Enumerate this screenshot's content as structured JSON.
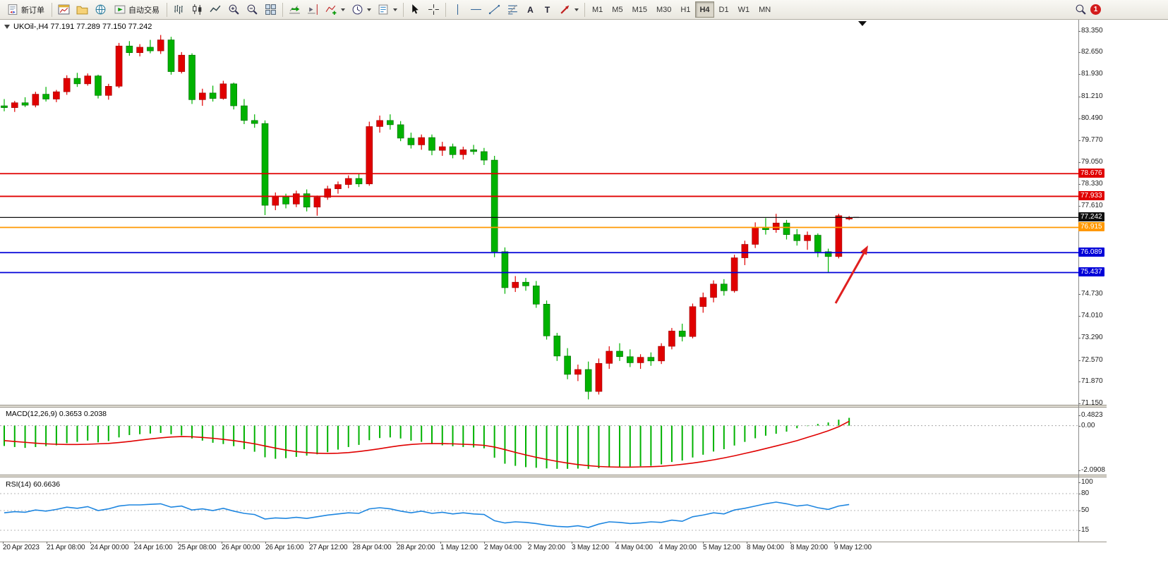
{
  "toolbar": {
    "new_order_label": "新订单",
    "autotrading_label": "自动交易",
    "text_tool_label": "A",
    "label_tool_label": "T",
    "timeframes": [
      "M1",
      "M5",
      "M15",
      "M30",
      "H1",
      "H4",
      "D1",
      "W1",
      "MN"
    ],
    "active_timeframe": "H4",
    "notification_count": "1"
  },
  "chart": {
    "title": "UKOil-,H4 77.191 77.289 77.150 77.242"
  },
  "chart_data": {
    "type": "candlestick",
    "symbol": "UKOil-",
    "timeframe": "H4",
    "up_color": "#E00000",
    "down_color": "#00B200",
    "annotation_arrow_color": "#E02020",
    "price_axis": {
      "range": [
        71.15,
        83.35
      ],
      "labels": [
        "83.350",
        "82.650",
        "81.930",
        "81.210",
        "80.490",
        "79.770",
        "79.050",
        "78.330",
        "77.610",
        "74.730",
        "74.010",
        "73.290",
        "72.570",
        "71.870",
        "71.150"
      ]
    },
    "levels": [
      {
        "value": 78.676,
        "label": "78.676",
        "color": "#E00000"
      },
      {
        "value": 77.933,
        "label": "77.933",
        "color": "#E00000"
      },
      {
        "value": 77.242,
        "label": "77.242",
        "color": "#101010"
      },
      {
        "value": 76.915,
        "label": "76.915",
        "color": "#FF9800"
      },
      {
        "value": 76.089,
        "label": "76.089",
        "color": "#0000D8"
      },
      {
        "value": 75.437,
        "label": "75.437",
        "color": "#0000D8"
      }
    ],
    "x_labels": [
      "20 Apr 2023",
      "21 Apr 08:00",
      "24 Apr 00:00",
      "24 Apr 16:00",
      "25 Apr 08:00",
      "26 Apr 00:00",
      "26 Apr 16:00",
      "27 Apr 12:00",
      "28 Apr 04:00",
      "28 Apr 20:00",
      "1 May 12:00",
      "2 May 04:00",
      "2 May 20:00",
      "3 May 12:00",
      "4 May 04:00",
      "4 May 20:00",
      "5 May 12:00",
      "8 May 04:00",
      "8 May 20:00",
      "9 May 12:00"
    ],
    "candles": [
      [
        80.9,
        81.12,
        80.72,
        80.84
      ],
      [
        80.84,
        81.06,
        80.7,
        81.0
      ],
      [
        81.0,
        81.18,
        80.86,
        80.92
      ],
      [
        80.92,
        81.36,
        80.85,
        81.28
      ],
      [
        81.28,
        81.52,
        81.04,
        81.12
      ],
      [
        81.12,
        81.42,
        81.02,
        81.36
      ],
      [
        81.36,
        81.9,
        81.26,
        81.8
      ],
      [
        81.8,
        81.98,
        81.52,
        81.62
      ],
      [
        81.62,
        81.96,
        81.56,
        81.88
      ],
      [
        81.88,
        81.92,
        81.14,
        81.24
      ],
      [
        81.24,
        81.62,
        81.1,
        81.54
      ],
      [
        81.54,
        82.96,
        81.48,
        82.86
      ],
      [
        82.86,
        83.02,
        82.54,
        82.64
      ],
      [
        82.64,
        82.92,
        82.52,
        82.82
      ],
      [
        82.82,
        83.06,
        82.62,
        82.7
      ],
      [
        82.7,
        83.22,
        82.6,
        83.06
      ],
      [
        83.06,
        83.16,
        81.92,
        82.02
      ],
      [
        82.02,
        82.66,
        81.96,
        82.56
      ],
      [
        82.56,
        82.62,
        80.96,
        81.1
      ],
      [
        81.1,
        81.46,
        80.9,
        81.32
      ],
      [
        81.32,
        81.56,
        81.04,
        81.14
      ],
      [
        81.14,
        81.72,
        81.1,
        81.62
      ],
      [
        81.62,
        81.66,
        80.78,
        80.9
      ],
      [
        80.9,
        81.12,
        80.3,
        80.42
      ],
      [
        80.42,
        80.62,
        80.18,
        80.32
      ],
      [
        80.32,
        80.42,
        77.32,
        77.64
      ],
      [
        77.64,
        78.06,
        77.48,
        77.92
      ],
      [
        77.92,
        78.02,
        77.54,
        77.68
      ],
      [
        77.68,
        78.12,
        77.58,
        78.02
      ],
      [
        78.02,
        78.16,
        77.44,
        77.58
      ],
      [
        77.58,
        77.96,
        77.3,
        77.9
      ],
      [
        77.9,
        78.28,
        77.82,
        78.18
      ],
      [
        78.18,
        78.42,
        78.02,
        78.32
      ],
      [
        78.32,
        78.62,
        78.2,
        78.52
      ],
      [
        78.52,
        78.66,
        78.24,
        78.34
      ],
      [
        78.34,
        80.38,
        78.28,
        80.22
      ],
      [
        80.22,
        80.58,
        80.02,
        80.42
      ],
      [
        80.42,
        80.62,
        80.12,
        80.28
      ],
      [
        80.28,
        80.4,
        79.74,
        79.84
      ],
      [
        79.84,
        80.02,
        79.5,
        79.62
      ],
      [
        79.62,
        79.96,
        79.46,
        79.86
      ],
      [
        79.86,
        79.96,
        79.28,
        79.44
      ],
      [
        79.44,
        79.72,
        79.26,
        79.56
      ],
      [
        79.56,
        79.66,
        79.18,
        79.3
      ],
      [
        79.3,
        79.56,
        79.14,
        79.46
      ],
      [
        79.46,
        79.62,
        79.3,
        79.4
      ],
      [
        79.4,
        79.52,
        78.96,
        79.12
      ],
      [
        79.12,
        79.26,
        75.94,
        76.12
      ],
      [
        76.12,
        76.26,
        74.74,
        74.94
      ],
      [
        74.94,
        75.32,
        74.8,
        75.12
      ],
      [
        75.12,
        75.26,
        74.84,
        75.0
      ],
      [
        75.0,
        75.16,
        74.28,
        74.4
      ],
      [
        74.4,
        74.52,
        73.24,
        73.36
      ],
      [
        73.36,
        73.46,
        72.54,
        72.7
      ],
      [
        72.7,
        72.96,
        71.94,
        72.1
      ],
      [
        72.1,
        72.42,
        71.88,
        72.26
      ],
      [
        72.26,
        72.52,
        71.28,
        71.54
      ],
      [
        71.54,
        72.62,
        71.44,
        72.46
      ],
      [
        72.46,
        73.02,
        72.28,
        72.86
      ],
      [
        72.86,
        73.12,
        72.54,
        72.68
      ],
      [
        72.68,
        72.92,
        72.34,
        72.48
      ],
      [
        72.48,
        72.76,
        72.28,
        72.66
      ],
      [
        72.66,
        72.82,
        72.38,
        72.54
      ],
      [
        72.54,
        73.12,
        72.44,
        73.02
      ],
      [
        73.02,
        73.62,
        72.92,
        73.52
      ],
      [
        73.52,
        73.76,
        73.18,
        73.34
      ],
      [
        73.34,
        74.42,
        73.28,
        74.32
      ],
      [
        74.32,
        74.78,
        74.12,
        74.62
      ],
      [
        74.62,
        75.18,
        74.46,
        75.06
      ],
      [
        75.06,
        75.22,
        74.68,
        74.84
      ],
      [
        74.84,
        76.02,
        74.78,
        75.92
      ],
      [
        75.92,
        76.48,
        75.68,
        76.36
      ],
      [
        76.36,
        77.08,
        76.24,
        76.92
      ],
      [
        76.92,
        77.22,
        76.68,
        76.84
      ],
      [
        76.84,
        77.36,
        76.74,
        77.06
      ],
      [
        77.06,
        77.16,
        76.52,
        76.68
      ],
      [
        76.68,
        76.86,
        76.32,
        76.48
      ],
      [
        76.48,
        76.78,
        76.18,
        76.66
      ],
      [
        76.66,
        76.72,
        75.94,
        76.12
      ],
      [
        76.12,
        76.22,
        75.44,
        75.96
      ],
      [
        75.96,
        77.36,
        75.9,
        77.3
      ],
      [
        77.191,
        77.289,
        77.15,
        77.242
      ]
    ],
    "macd": {
      "label": "MACD(12,26,9) 0.3653 0.2038",
      "params": "12,26,9",
      "current_macd": 0.3653,
      "current_signal": 0.2038,
      "range": [
        -2.0908,
        0.4823
      ],
      "axis_labels": [
        "0.4823",
        "0.00",
        "-2.0908"
      ],
      "histogram_color": "#00B200",
      "signal_color": "#E00000",
      "histogram": [
        -0.95,
        -1.0,
        -1.04,
        -1.0,
        -0.96,
        -0.92,
        -0.82,
        -0.76,
        -0.7,
        -0.78,
        -0.72,
        -0.55,
        -0.44,
        -0.4,
        -0.37,
        -0.34,
        -0.4,
        -0.46,
        -0.6,
        -0.7,
        -0.8,
        -0.86,
        -0.96,
        -1.1,
        -1.22,
        -1.48,
        -1.55,
        -1.52,
        -1.46,
        -1.4,
        -1.34,
        -1.24,
        -1.12,
        -1.0,
        -0.9,
        -0.68,
        -0.58,
        -0.55,
        -0.6,
        -0.7,
        -0.76,
        -0.86,
        -0.92,
        -0.96,
        -1.0,
        -1.02,
        -1.06,
        -1.5,
        -1.78,
        -1.88,
        -1.94,
        -1.97,
        -2.0,
        -2.02,
        -2.02,
        -2.01,
        -2.02,
        -1.99,
        -1.95,
        -1.93,
        -1.91,
        -1.9,
        -1.88,
        -1.81,
        -1.7,
        -1.63,
        -1.49,
        -1.36,
        -1.21,
        -1.1,
        -0.93,
        -0.76,
        -0.59,
        -0.47,
        -0.38,
        -0.28,
        -0.12,
        -0.02,
        0.08,
        0.15,
        0.28,
        0.3653
      ],
      "signal": [
        -0.7,
        -0.74,
        -0.78,
        -0.82,
        -0.85,
        -0.87,
        -0.88,
        -0.88,
        -0.87,
        -0.85,
        -0.83,
        -0.79,
        -0.74,
        -0.68,
        -0.62,
        -0.57,
        -0.53,
        -0.51,
        -0.52,
        -0.55,
        -0.59,
        -0.64,
        -0.7,
        -0.77,
        -0.85,
        -0.95,
        -1.05,
        -1.14,
        -1.21,
        -1.26,
        -1.29,
        -1.3,
        -1.29,
        -1.26,
        -1.21,
        -1.15,
        -1.08,
        -1.0,
        -0.93,
        -0.88,
        -0.85,
        -0.84,
        -0.84,
        -0.85,
        -0.87,
        -0.89,
        -0.92,
        -1.0,
        -1.12,
        -1.25,
        -1.37,
        -1.48,
        -1.58,
        -1.67,
        -1.75,
        -1.82,
        -1.87,
        -1.91,
        -1.93,
        -1.94,
        -1.94,
        -1.93,
        -1.92,
        -1.9,
        -1.86,
        -1.81,
        -1.75,
        -1.68,
        -1.6,
        -1.51,
        -1.41,
        -1.3,
        -1.19,
        -1.07,
        -0.95,
        -0.83,
        -0.7,
        -0.55,
        -0.4,
        -0.24,
        -0.05,
        0.2038
      ]
    },
    "rsi": {
      "label": "RSI(14) 60.6636",
      "period": 14,
      "current": 60.6636,
      "range": [
        0,
        100
      ],
      "axis_labels": [
        "100",
        "80",
        "50",
        "15"
      ],
      "levels": [
        80,
        50,
        15
      ],
      "color": "#1E86E0",
      "values": [
        46,
        48,
        47,
        51,
        49,
        52,
        56,
        54,
        57,
        50,
        53,
        58,
        60,
        60,
        61,
        62,
        56,
        58,
        51,
        53,
        50,
        54,
        49,
        45,
        43,
        35,
        37,
        36,
        38,
        36,
        39,
        42,
        44,
        46,
        45,
        53,
        55,
        53,
        49,
        46,
        49,
        45,
        47,
        44,
        46,
        44,
        43,
        32,
        28,
        30,
        29,
        27,
        24,
        22,
        21,
        23,
        20,
        26,
        30,
        29,
        27,
        28,
        30,
        29,
        33,
        31,
        39,
        42,
        46,
        44,
        51,
        54,
        58,
        62,
        65,
        62,
        58,
        60,
        55,
        52,
        58,
        60.6636
      ]
    }
  }
}
